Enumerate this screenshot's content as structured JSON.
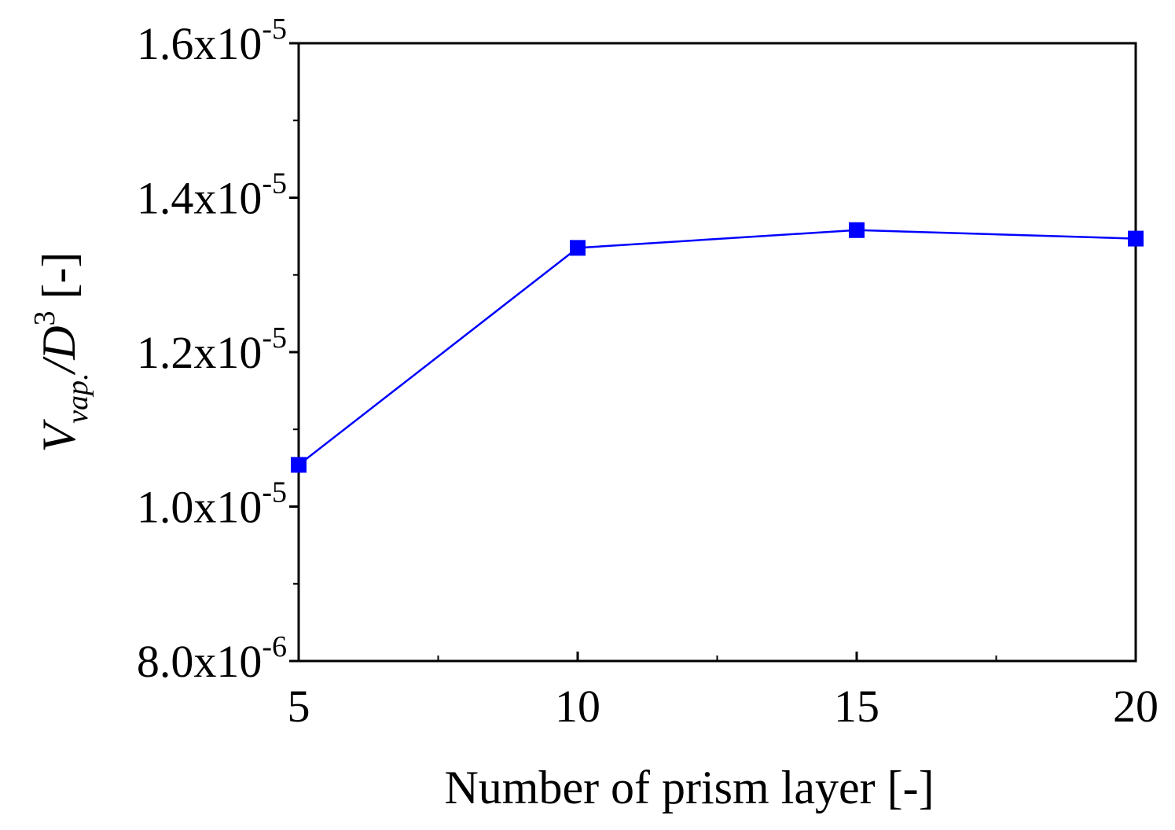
{
  "chart_data": {
    "type": "line",
    "xlabel": "Number of prism layer [-]",
    "ylabel": {
      "main": "V",
      "subscript": "vap.",
      "rest": "/D",
      "superscript": "3",
      "unit": " [-]"
    },
    "x": [
      5,
      10,
      15,
      20
    ],
    "series": [
      {
        "values": [
          1.054e-05,
          1.335e-05,
          1.358e-05,
          1.347e-05
        ],
        "color": "#0000ff",
        "marker": "square"
      }
    ],
    "xlim": [
      5,
      20
    ],
    "ylim": [
      8e-06,
      1.6e-05
    ],
    "x_ticks": [
      {
        "value": 5,
        "label": "5"
      },
      {
        "value": 10,
        "label": "10"
      },
      {
        "value": 15,
        "label": "15"
      },
      {
        "value": 20,
        "label": "20"
      }
    ],
    "x_minor_ticks": [
      7.5,
      12.5,
      17.5
    ],
    "y_ticks": [
      {
        "value": 8e-06,
        "mantissa": "8.0x10",
        "exponent": "-6"
      },
      {
        "value": 1e-05,
        "mantissa": "1.0x10",
        "exponent": "-5"
      },
      {
        "value": 1.2e-05,
        "mantissa": "1.2x10",
        "exponent": "-5"
      },
      {
        "value": 1.4e-05,
        "mantissa": "1.4x10",
        "exponent": "-5"
      },
      {
        "value": 1.6e-05,
        "mantissa": "1.6x10",
        "exponent": "-5"
      }
    ],
    "y_minor_ticks": [
      9e-06,
      1.1e-05,
      1.3e-05,
      1.5e-05
    ],
    "grid": false,
    "legend": "none"
  }
}
